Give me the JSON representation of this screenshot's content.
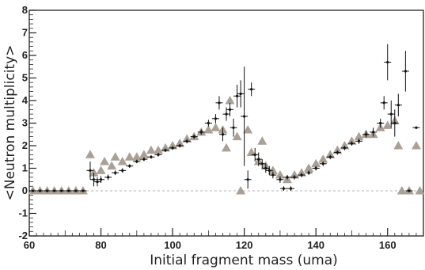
{
  "chart_data": {
    "type": "scatter",
    "title": "",
    "xlabel": "Initial fragment mass (uma)",
    "ylabel": "<Neutron multiplicity>",
    "xlim": [
      60,
      170
    ],
    "ylim": [
      -2,
      8
    ],
    "x_ticks": [
      60,
      80,
      100,
      120,
      140,
      160
    ],
    "y_ticks": [
      -2,
      -1,
      0,
      1,
      2,
      3,
      4,
      5,
      6,
      7,
      8
    ],
    "grid": false,
    "legend": "none",
    "series": [
      {
        "marker": "cross-with-error-bars",
        "color": "#111111",
        "points": [
          {
            "x": 61,
            "y": 0,
            "e": 0.05
          },
          {
            "x": 63,
            "y": 0,
            "e": 0.05
          },
          {
            "x": 65,
            "y": 0,
            "e": 0.05
          },
          {
            "x": 67,
            "y": 0,
            "e": 0.05
          },
          {
            "x": 69,
            "y": 0,
            "e": 0.05
          },
          {
            "x": 71,
            "y": 0,
            "e": 0.05
          },
          {
            "x": 73,
            "y": 0,
            "e": 0.05
          },
          {
            "x": 75,
            "y": 0,
            "e": 0.05
          },
          {
            "x": 77,
            "y": 0.9,
            "e": 0.4
          },
          {
            "x": 78,
            "y": 0.5,
            "e": 0.3
          },
          {
            "x": 79,
            "y": 0.4,
            "e": 0.2
          },
          {
            "x": 80,
            "y": 0.5,
            "e": 0.15
          },
          {
            "x": 82,
            "y": 0.6,
            "e": 0.12
          },
          {
            "x": 84,
            "y": 0.8,
            "e": 0.1
          },
          {
            "x": 86,
            "y": 0.9,
            "e": 0.1
          },
          {
            "x": 88,
            "y": 1.1,
            "e": 0.08
          },
          {
            "x": 90,
            "y": 1.3,
            "e": 0.08
          },
          {
            "x": 92,
            "y": 1.4,
            "e": 0.08
          },
          {
            "x": 94,
            "y": 1.5,
            "e": 0.08
          },
          {
            "x": 96,
            "y": 1.6,
            "e": 0.08
          },
          {
            "x": 98,
            "y": 1.8,
            "e": 0.08
          },
          {
            "x": 100,
            "y": 1.9,
            "e": 0.08
          },
          {
            "x": 102,
            "y": 2.0,
            "e": 0.08
          },
          {
            "x": 104,
            "y": 2.2,
            "e": 0.1
          },
          {
            "x": 106,
            "y": 2.4,
            "e": 0.1
          },
          {
            "x": 108,
            "y": 2.6,
            "e": 0.12
          },
          {
            "x": 110,
            "y": 3.0,
            "e": 0.15
          },
          {
            "x": 112,
            "y": 3.2,
            "e": 0.2
          },
          {
            "x": 113,
            "y": 3.9,
            "e": 0.3
          },
          {
            "x": 114,
            "y": 2.5,
            "e": 0.3
          },
          {
            "x": 115,
            "y": 3.4,
            "e": 0.3
          },
          {
            "x": 116,
            "y": 3.6,
            "e": 0.3
          },
          {
            "x": 117,
            "y": 2.8,
            "e": 0.4
          },
          {
            "x": 118,
            "y": 4.2,
            "e": 0.5
          },
          {
            "x": 119,
            "y": 4.3,
            "e": 0.6
          },
          {
            "x": 120,
            "y": 3.3,
            "e": 2.2
          },
          {
            "x": 121,
            "y": 0.5,
            "e": 0.4
          },
          {
            "x": 122,
            "y": 4.5,
            "e": 0.3
          },
          {
            "x": 123,
            "y": 1.6,
            "e": 0.3
          },
          {
            "x": 124,
            "y": 1.4,
            "e": 0.3
          },
          {
            "x": 125,
            "y": 1.2,
            "e": 0.2
          },
          {
            "x": 126,
            "y": 1.0,
            "e": 0.2
          },
          {
            "x": 127,
            "y": 0.9,
            "e": 0.2
          },
          {
            "x": 128,
            "y": 0.7,
            "e": 0.15
          },
          {
            "x": 130,
            "y": 0.5,
            "e": 0.15
          },
          {
            "x": 131,
            "y": 0.1,
            "e": 0.1
          },
          {
            "x": 132,
            "y": 0.6,
            "e": 0.1
          },
          {
            "x": 133,
            "y": 0.1,
            "e": 0.1
          },
          {
            "x": 134,
            "y": 0.6,
            "e": 0.1
          },
          {
            "x": 136,
            "y": 0.7,
            "e": 0.1
          },
          {
            "x": 138,
            "y": 0.8,
            "e": 0.1
          },
          {
            "x": 140,
            "y": 1.0,
            "e": 0.1
          },
          {
            "x": 142,
            "y": 1.2,
            "e": 0.1
          },
          {
            "x": 144,
            "y": 1.5,
            "e": 0.1
          },
          {
            "x": 146,
            "y": 1.7,
            "e": 0.1
          },
          {
            "x": 148,
            "y": 1.9,
            "e": 0.1
          },
          {
            "x": 150,
            "y": 2.1,
            "e": 0.1
          },
          {
            "x": 152,
            "y": 2.2,
            "e": 0.12
          },
          {
            "x": 154,
            "y": 2.5,
            "e": 0.15
          },
          {
            "x": 156,
            "y": 2.6,
            "e": 0.2
          },
          {
            "x": 158,
            "y": 3.0,
            "e": 0.2
          },
          {
            "x": 159,
            "y": 3.9,
            "e": 0.3
          },
          {
            "x": 160,
            "y": 5.7,
            "e": 0.8
          },
          {
            "x": 161,
            "y": 3.4,
            "e": 0.6
          },
          {
            "x": 162,
            "y": 3.0,
            "e": 0.6
          },
          {
            "x": 163,
            "y": 3.8,
            "e": 0.5
          },
          {
            "x": 165,
            "y": 5.3,
            "e": 0.9
          },
          {
            "x": 166,
            "y": 0,
            "e": 0.05
          },
          {
            "x": 168,
            "y": 2.8,
            "e": 0.05
          }
        ]
      },
      {
        "marker": "triangle",
        "color": "#aaa096",
        "points": [
          {
            "x": 61,
            "y": 0
          },
          {
            "x": 63,
            "y": 0
          },
          {
            "x": 65,
            "y": 0
          },
          {
            "x": 67,
            "y": 0
          },
          {
            "x": 69,
            "y": 0
          },
          {
            "x": 71,
            "y": 0
          },
          {
            "x": 73,
            "y": 0
          },
          {
            "x": 75,
            "y": 0
          },
          {
            "x": 77,
            "y": 1.6
          },
          {
            "x": 78,
            "y": 0.8
          },
          {
            "x": 80,
            "y": 0.9
          },
          {
            "x": 81,
            "y": 1.3
          },
          {
            "x": 83,
            "y": 1.1
          },
          {
            "x": 84,
            "y": 1.5
          },
          {
            "x": 86,
            "y": 1.3
          },
          {
            "x": 88,
            "y": 1.5
          },
          {
            "x": 90,
            "y": 1.5
          },
          {
            "x": 92,
            "y": 1.6
          },
          {
            "x": 94,
            "y": 1.8
          },
          {
            "x": 96,
            "y": 1.8
          },
          {
            "x": 98,
            "y": 1.9
          },
          {
            "x": 100,
            "y": 2.0
          },
          {
            "x": 102,
            "y": 2.1
          },
          {
            "x": 104,
            "y": 2.3
          },
          {
            "x": 106,
            "y": 2.4
          },
          {
            "x": 108,
            "y": 2.6
          },
          {
            "x": 110,
            "y": 2.7
          },
          {
            "x": 112,
            "y": 2.8
          },
          {
            "x": 114,
            "y": 2.7
          },
          {
            "x": 115,
            "y": 1.9
          },
          {
            "x": 116,
            "y": 4.0
          },
          {
            "x": 118,
            "y": 2.4
          },
          {
            "x": 119,
            "y": 0.0
          },
          {
            "x": 121,
            "y": 2.7
          },
          {
            "x": 122,
            "y": 1.7
          },
          {
            "x": 124,
            "y": 1.3
          },
          {
            "x": 125,
            "y": 2.2
          },
          {
            "x": 126,
            "y": 1.1
          },
          {
            "x": 128,
            "y": 0.9
          },
          {
            "x": 130,
            "y": 0.7
          },
          {
            "x": 132,
            "y": 0.5
          },
          {
            "x": 134,
            "y": 0.7
          },
          {
            "x": 136,
            "y": 0.8
          },
          {
            "x": 138,
            "y": 1.0
          },
          {
            "x": 140,
            "y": 1.2
          },
          {
            "x": 142,
            "y": 1.4
          },
          {
            "x": 144,
            "y": 1.6
          },
          {
            "x": 146,
            "y": 1.8
          },
          {
            "x": 148,
            "y": 2.0
          },
          {
            "x": 150,
            "y": 2.2
          },
          {
            "x": 152,
            "y": 2.4
          },
          {
            "x": 154,
            "y": 2.5
          },
          {
            "x": 156,
            "y": 2.5
          },
          {
            "x": 158,
            "y": 2.8
          },
          {
            "x": 160,
            "y": 2.9
          },
          {
            "x": 162,
            "y": 3.1
          },
          {
            "x": 163,
            "y": 2.0
          },
          {
            "x": 164,
            "y": 0
          },
          {
            "x": 166,
            "y": 0
          },
          {
            "x": 168,
            "y": 2.0
          },
          {
            "x": 169,
            "y": 0
          }
        ]
      }
    ]
  }
}
